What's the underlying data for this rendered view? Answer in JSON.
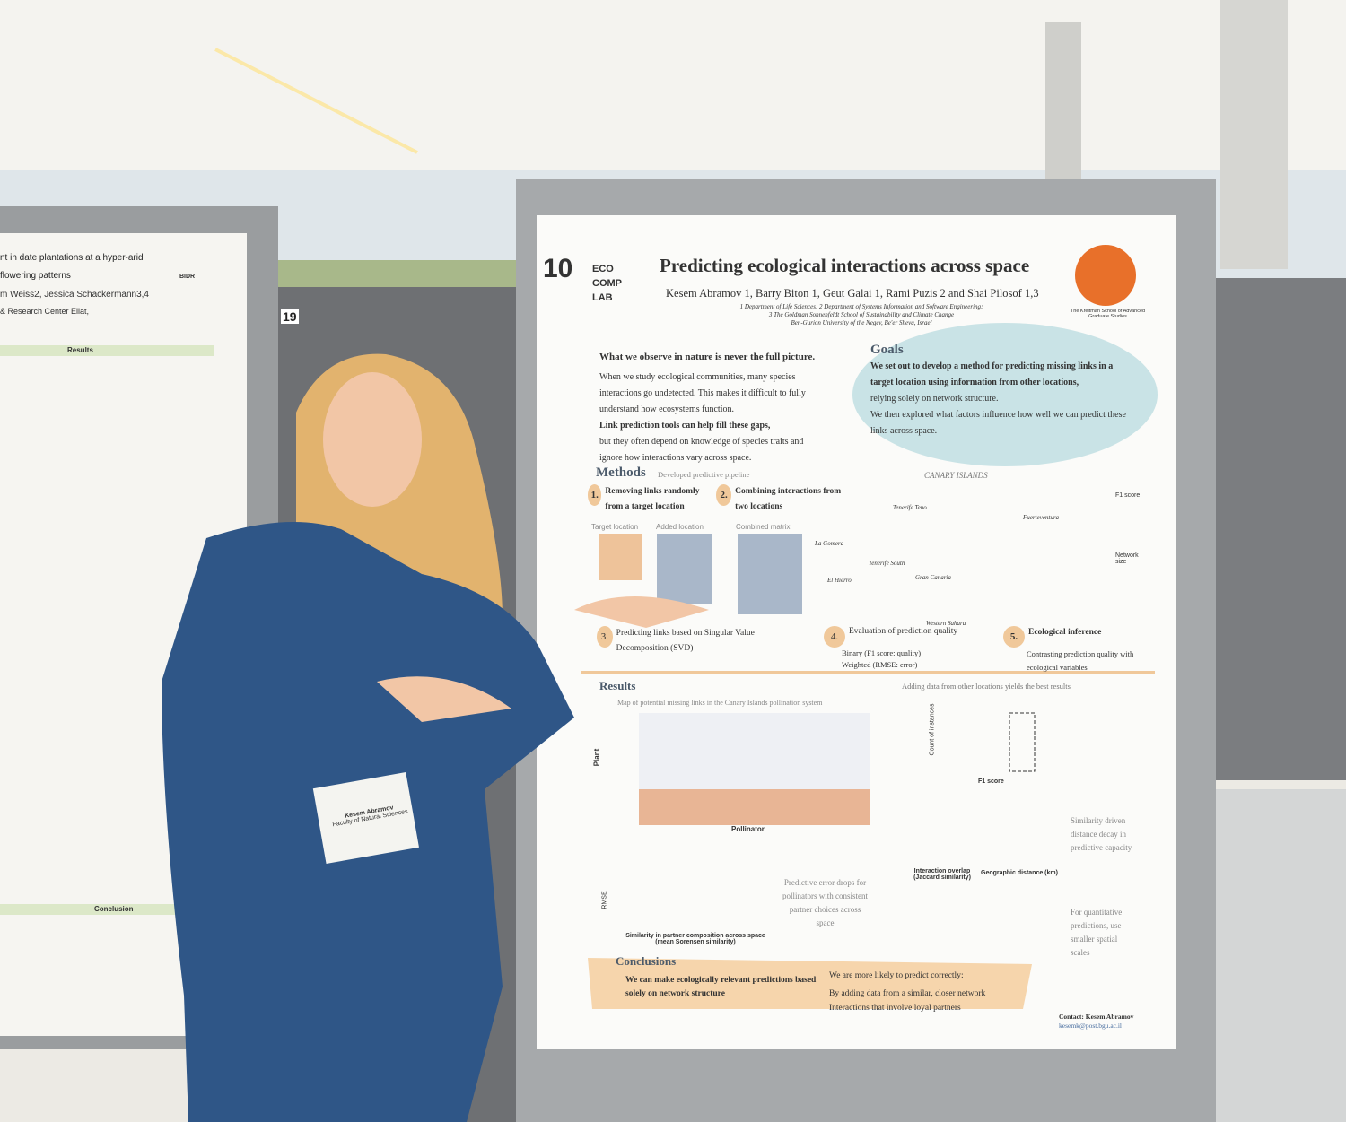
{
  "poster": {
    "number": "10",
    "logo": [
      "ECO",
      "COMP",
      "LAB"
    ],
    "title": "Predicting ecological interactions across space",
    "authors": "Kesem Abramov 1, Barry Biton 1, Geut Galai 1, Rami Puzis 2 and Shai Pilosof 1,3",
    "affiliations": [
      "1 Department of Life Sciences; 2 Department of Systems Information and Software Engineering;",
      "3 The Goldman Sonnenfeldt School of Sustainability and Climate Change",
      "Ben-Gurion University of the Negev, Be'er Sheva, Israel"
    ],
    "school": "The Kreitman School of Advanced Graduate Studies",
    "intro": {
      "heading": "What we observe in nature is never the full picture.",
      "lines": [
        "When we study ecological communities, many species interactions go undetected. This makes it difficult to fully understand how ecosystems function.",
        "Link prediction tools can help fill these gaps,",
        "but they often depend on knowledge of species traits and ignore how interactions vary across space."
      ]
    },
    "goals": {
      "heading": "Goals",
      "lines": [
        "We set out to develop a method for predicting missing links in a target location using information from other locations,",
        "relying solely on network structure.",
        "We then explored what factors influence how well we can predict these links across space."
      ]
    },
    "methods": {
      "heading": "Methods",
      "subheading": "Developed predictive pipeline",
      "steps": [
        {
          "number": "1.",
          "text": "Removing links randomly from a target location"
        },
        {
          "number": "2.",
          "text": "Combining interactions from two locations"
        },
        {
          "number": "3.",
          "text": "Predicting links based on Singular Value Decomposition (SVD)"
        },
        {
          "number": "4.",
          "text": "Evaluation of prediction quality",
          "bullets": [
            "Binary (F1 score: quality)",
            "Weighted (RMSE: error)"
          ]
        },
        {
          "number": "5.",
          "text": "Ecological inference",
          "detail": "Contrasting prediction quality with ecological variables"
        }
      ],
      "matrix_labels": [
        "Target location",
        "Added location",
        "Combined matrix"
      ]
    },
    "map": {
      "title": "CANARY ISLANDS",
      "places": [
        "Tenerife Teno",
        "Fuerteventura",
        "La Gomera",
        "Tenerife South",
        "El Hierro",
        "Gran Canaria",
        "Western Sahara"
      ],
      "legend": [
        "F1 score",
        "Network size"
      ]
    },
    "results": {
      "heading": "Results",
      "subheading": "Map of potential missing links in the Canary Islands pollination system",
      "axis_labels": [
        "Plant",
        "Pollinator",
        "Count of instances",
        "F1 score",
        "Interaction overlap (Jaccard similarity)",
        "Geographic distance (km)",
        "RMSE",
        "Similarity in partner composition across space (mean Sorensen similarity)"
      ],
      "findings": [
        "Adding data from other locations yields the best results",
        "Similarity driven distance decay in predictive capacity",
        "Predictive error drops for pollinators with consistent partner choices across space",
        "For quantitative predictions, use smaller spatial scales"
      ]
    },
    "conclusions": {
      "heading": "Conclusions",
      "main": "We can make ecologically relevant predictions based solely on network structure",
      "lead": "We are more likely to predict correctly:",
      "points": [
        "By adding data from a similar, closer network",
        "Interactions that involve loyal partners"
      ]
    },
    "contact": "Contact: Kesem Abramov",
    "email": "kesemk@post.bgu.ac.il"
  },
  "board_number": "19",
  "badge": {
    "name": "Kesem Abramov",
    "faculty": "Faculty of Natural Sciences"
  },
  "left_poster": {
    "title_lines": [
      "nt in date plantations at a hyper-arid",
      "flowering patterns"
    ],
    "authors": "m Weiss2, Jessica Schäckermann3,4",
    "affiliation": "& Research Center Eilat,",
    "logo": "BIDR",
    "sections": [
      "Results",
      "Conclusion"
    ]
  }
}
